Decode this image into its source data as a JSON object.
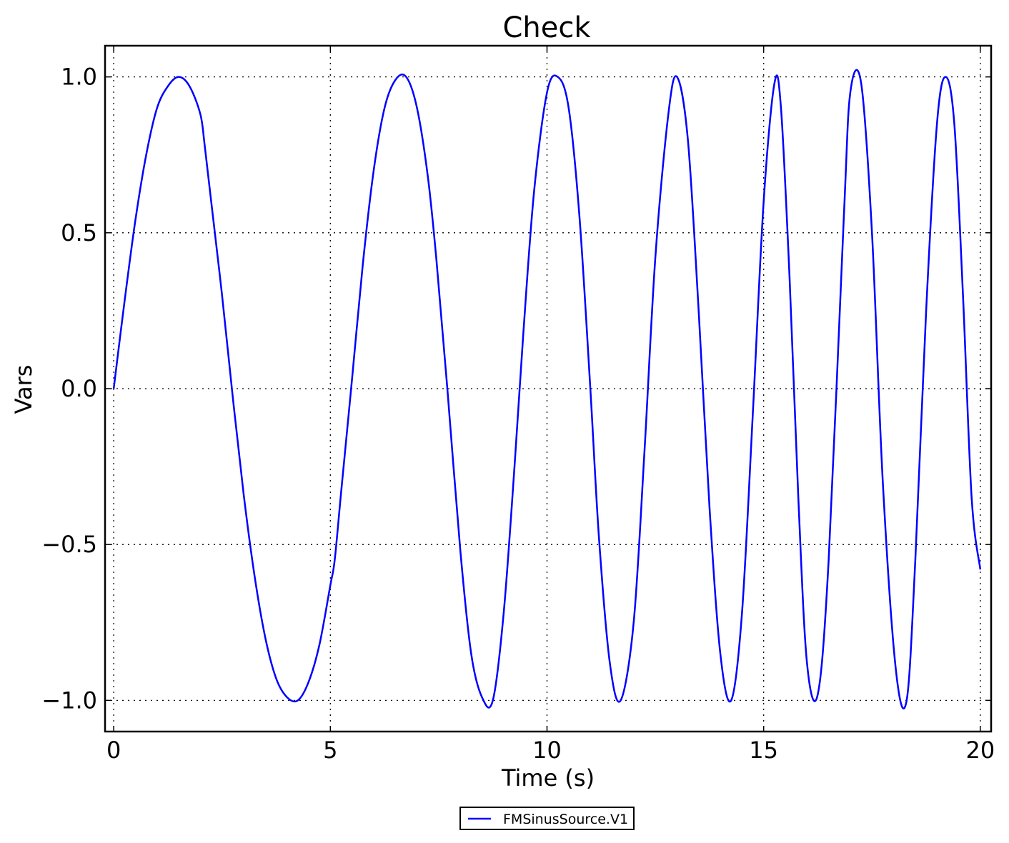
{
  "chart_data": {
    "type": "line",
    "title": "Check",
    "xlabel": "Time (s)",
    "ylabel": "Vars",
    "xlim": [
      -0.2,
      20.25
    ],
    "ylim": [
      -1.1,
      1.1
    ],
    "xticks": [
      0,
      5,
      10,
      15,
      20
    ],
    "xtick_labels": [
      "0",
      "5",
      "10",
      "15",
      "20"
    ],
    "yticks": [
      -1.0,
      -0.5,
      0.0,
      0.5,
      1.0
    ],
    "ytick_labels": [
      "−1.0",
      "−0.5",
      "0.0",
      "0.5",
      "1.0"
    ],
    "grid": true,
    "legend_position": "bottom-center",
    "series": [
      {
        "name": "FMSinusSource.V1",
        "color": "#0000ff",
        "x": [
          0.0,
          0.25,
          0.5,
          0.75,
          1.0,
          1.25,
          1.5,
          1.75,
          2.0,
          2.1,
          2.25,
          2.5,
          2.75,
          3.0,
          3.25,
          3.5,
          3.75,
          4.0,
          4.25,
          4.5,
          4.75,
          5.0,
          5.1,
          5.25,
          5.5,
          5.75,
          6.0,
          6.25,
          6.5,
          6.75,
          7.0,
          7.25,
          7.45,
          7.7,
          8.0,
          8.25,
          8.5,
          8.75,
          9.0,
          9.25,
          9.45,
          9.7,
          10.0,
          10.25,
          10.5,
          10.75,
          11.0,
          11.2,
          11.45,
          11.7,
          12.0,
          12.25,
          12.5,
          12.8,
          13.0,
          13.25,
          13.5,
          13.75,
          14.0,
          14.25,
          14.5,
          14.75,
          15.0,
          15.25,
          15.4,
          15.6,
          15.8,
          16.0,
          16.25,
          16.5,
          16.85,
          17.0,
          17.25,
          17.5,
          17.75,
          18.05,
          18.3,
          18.5,
          18.75,
          19.0,
          19.2,
          19.4,
          19.6,
          19.8,
          20.0
        ],
        "y": [
          0.0,
          0.28,
          0.54,
          0.75,
          0.9,
          0.97,
          1.0,
          0.97,
          0.88,
          0.78,
          0.6,
          0.3,
          -0.03,
          -0.34,
          -0.6,
          -0.8,
          -0.93,
          -0.99,
          -1.0,
          -0.94,
          -0.82,
          -0.63,
          -0.55,
          -0.33,
          0.03,
          0.4,
          0.7,
          0.9,
          0.99,
          1.0,
          0.9,
          0.68,
          0.41,
          0.0,
          -0.52,
          -0.85,
          -0.99,
          -1.0,
          -0.72,
          -0.25,
          0.17,
          0.63,
          0.95,
          1.0,
          0.9,
          0.55,
          0.0,
          -0.48,
          -0.88,
          -1.0,
          -0.75,
          -0.2,
          0.42,
          0.88,
          1.0,
          0.8,
          0.25,
          -0.38,
          -0.85,
          -1.0,
          -0.72,
          -0.08,
          0.6,
          0.98,
          0.9,
          0.35,
          -0.35,
          -0.88,
          -0.98,
          -0.55,
          0.55,
          0.95,
          0.98,
          0.5,
          -0.3,
          -0.9,
          -1.0,
          -0.55,
          0.25,
          0.85,
          1.0,
          0.85,
          0.3,
          -0.35,
          -0.58
        ]
      }
    ]
  }
}
